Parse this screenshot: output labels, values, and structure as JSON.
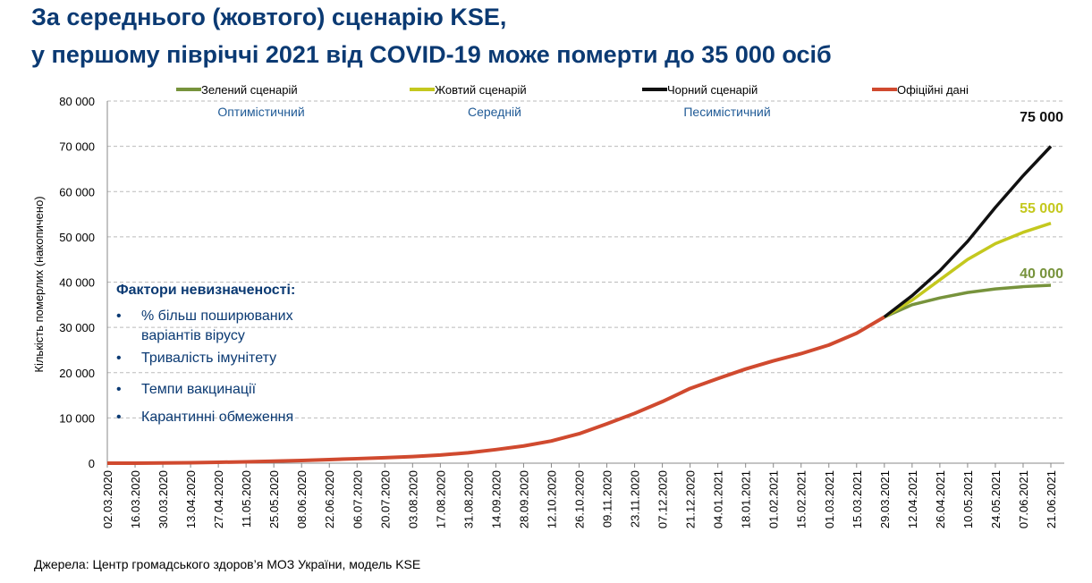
{
  "chart_data": {
    "type": "line",
    "title_lines": [
      "За середнього (жовтого) сценарію KSE,",
      "у першому півріччі 2021 від COVID-19 може померти до 35 000 осіб"
    ],
    "ylabel": "Кількість померлих (накопичено)",
    "source": "Джерела: Центр громадського здоров’я МОЗ України, модель KSE",
    "categories": [
      "02.03.2020",
      "16.03.2020",
      "30.03.2020",
      "13.04.2020",
      "27.04.2020",
      "11.05.2020",
      "25.05.2020",
      "08.06.2020",
      "22.06.2020",
      "06.07.2020",
      "20.07.2020",
      "03.08.2020",
      "17.08.2020",
      "31.08.2020",
      "14.09.2020",
      "28.09.2020",
      "12.10.2020",
      "26.10.2020",
      "09.11.2020",
      "23.11.2020",
      "07.12.2020",
      "21.12.2020",
      "04.01.2021",
      "18.01.2021",
      "01.02.2021",
      "15.02.2021",
      "01.03.2021",
      "15.03.2021",
      "29.03.2021",
      "12.04.2021",
      "26.04.2021",
      "10.05.2021",
      "24.05.2021",
      "07.06.2021",
      "21.06.2021"
    ],
    "ylim": [
      0,
      80000
    ],
    "yticks": [
      0,
      {
        "value": 10000,
        "label": "10 000"
      },
      {
        "value": 20000,
        "label": "20 000"
      },
      {
        "value": 30000,
        "label": "30 000"
      },
      {
        "value": 40000,
        "label": "40 000"
      },
      {
        "value": 50000,
        "label": "50 000"
      },
      {
        "value": 60000,
        "label": "60 000"
      },
      {
        "value": 70000,
        "label": "70 000"
      },
      {
        "value": 80000,
        "label": "80 000"
      }
    ],
    "grid": true,
    "series": [
      {
        "name": "Зелений сценарій",
        "description": "Оптимістичний",
        "color": "#77933c",
        "values": [
          null,
          null,
          null,
          null,
          null,
          null,
          null,
          null,
          null,
          null,
          null,
          null,
          null,
          null,
          null,
          null,
          null,
          null,
          null,
          null,
          null,
          null,
          null,
          null,
          null,
          null,
          null,
          null,
          32300,
          35000,
          36500,
          37700,
          38500,
          39000,
          39300
        ]
      },
      {
        "name": "Жовтий сценарій",
        "description": "Середній",
        "color": "#c4c81e",
        "values": [
          null,
          null,
          null,
          null,
          null,
          null,
          null,
          null,
          null,
          null,
          null,
          null,
          null,
          null,
          null,
          null,
          null,
          null,
          null,
          null,
          null,
          null,
          null,
          null,
          null,
          null,
          null,
          null,
          32300,
          36000,
          40500,
          45000,
          48500,
          51000,
          53000
        ]
      },
      {
        "name": "Чорний сценарій",
        "description": "Песимістичний",
        "color": "#111111",
        "values": [
          null,
          null,
          null,
          null,
          null,
          null,
          null,
          null,
          null,
          null,
          null,
          null,
          null,
          null,
          null,
          null,
          null,
          null,
          null,
          null,
          null,
          null,
          null,
          null,
          null,
          null,
          null,
          null,
          32300,
          37000,
          42500,
          49000,
          56500,
          63500,
          70000
        ]
      },
      {
        "name": "Офіційні дані",
        "color": "#d04a2f",
        "values": [
          0,
          0,
          50,
          100,
          200,
          300,
          450,
          600,
          800,
          1000,
          1200,
          1450,
          1800,
          2300,
          3000,
          3800,
          4900,
          6500,
          8700,
          11000,
          13600,
          16500,
          18700,
          20800,
          22600,
          24200,
          26100,
          28700,
          32300,
          null,
          null,
          null,
          null,
          null,
          null
        ]
      }
    ],
    "annotations": [
      {
        "text": "75 000",
        "color": "#111111"
      },
      {
        "text": "55 000",
        "color": "#c4c81e"
      },
      {
        "text": "40 000",
        "color": "#77933c"
      }
    ],
    "factors": {
      "heading": "Фактори невизначеності:",
      "items": [
        "% більш поширюваних варіантів вірусу",
        "Тривалість імунітету",
        "Темпи вакцинації",
        "Карантинні обмеження"
      ]
    }
  }
}
